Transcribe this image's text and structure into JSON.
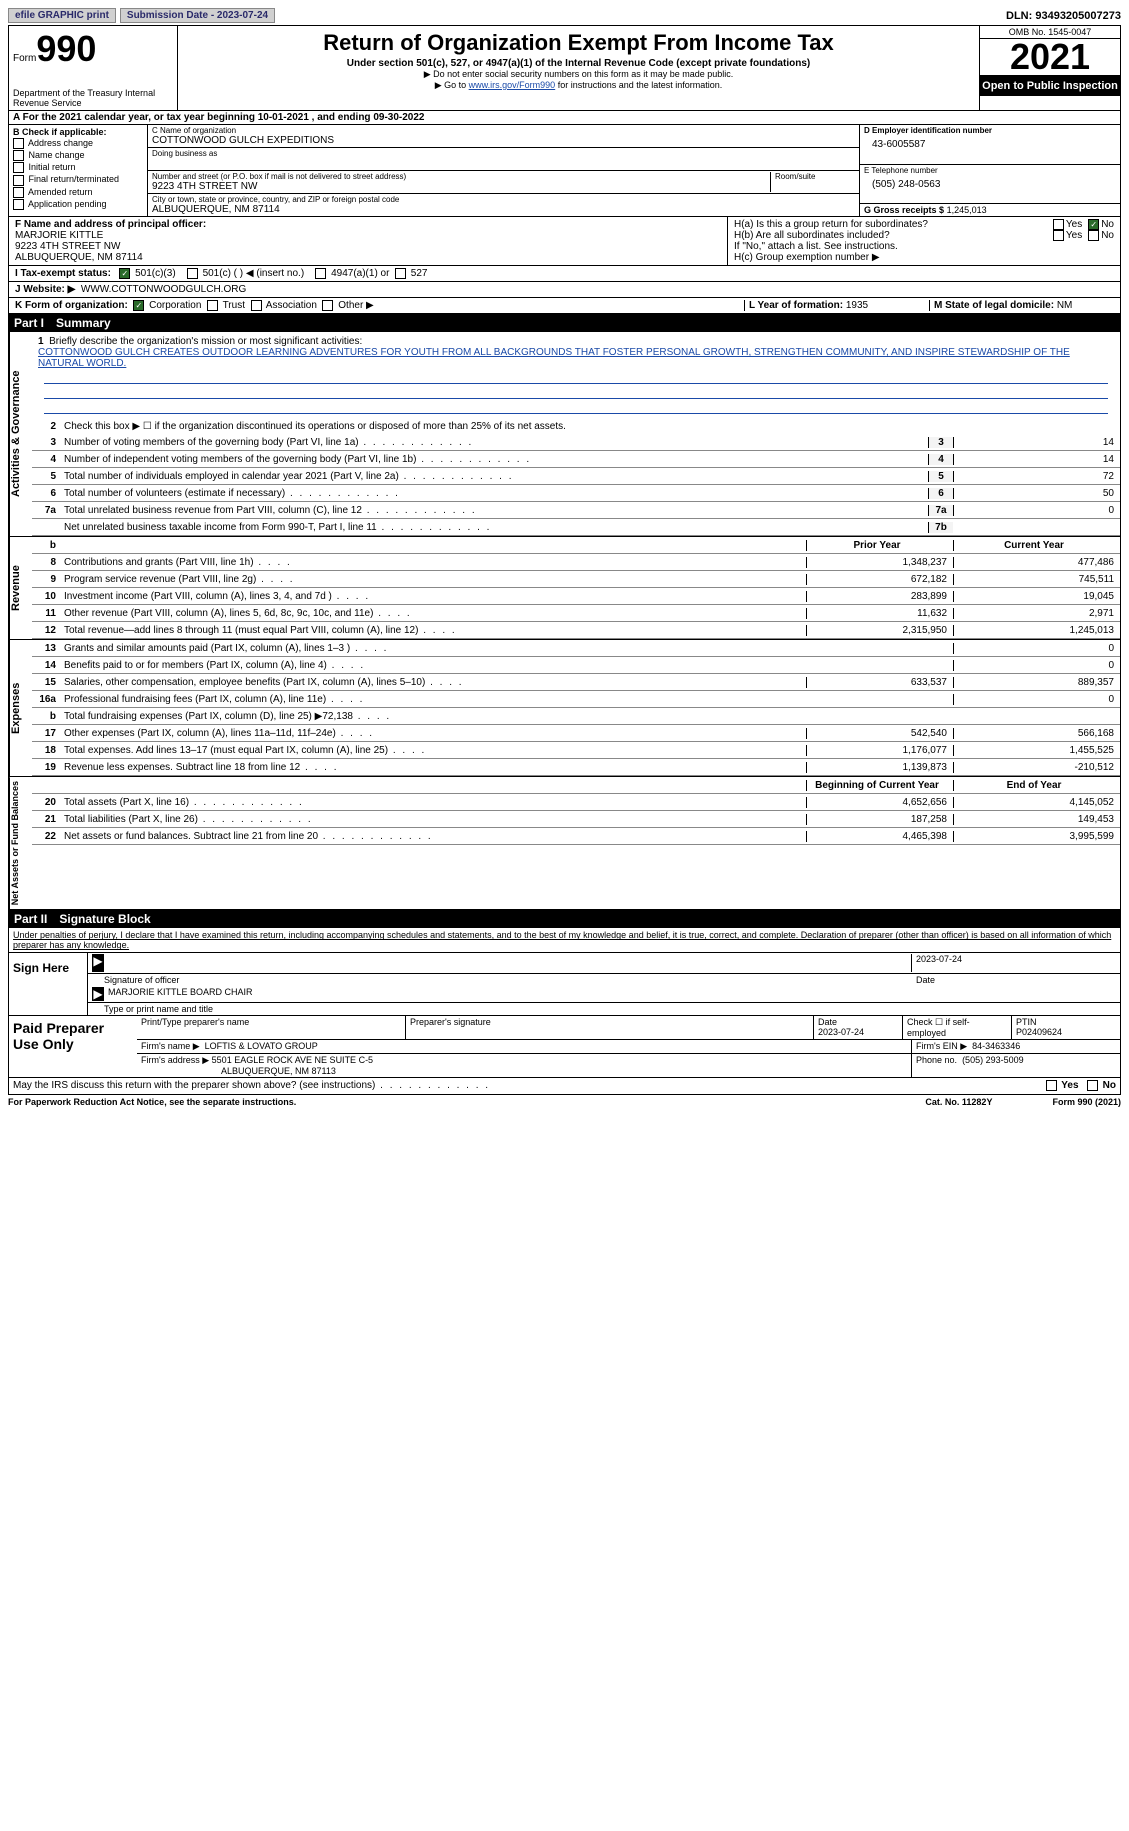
{
  "top": {
    "efile_btn": "efile GRAPHIC print",
    "submission_btn": "Submission Date - 2023-07-24",
    "dln": "DLN: 93493205007273"
  },
  "header": {
    "form_label": "Form",
    "form_num": "990",
    "dept": "Department of the Treasury Internal Revenue Service",
    "title": "Return of Organization Exempt From Income Tax",
    "sub1": "Under section 501(c), 527, or 4947(a)(1) of the Internal Revenue Code (except private foundations)",
    "sub2": "▶ Do not enter social security numbers on this form as it may be made public.",
    "sub3_pre": "▶ Go to ",
    "sub3_link": "www.irs.gov/Form990",
    "sub3_post": " for instructions and the latest information.",
    "omb": "OMB No. 1545-0047",
    "year": "2021",
    "open": "Open to Public Inspection"
  },
  "row_a": "A For the 2021 calendar year, or tax year beginning 10-01-2021    , and ending 09-30-2022",
  "section_b": {
    "b_label": "B Check if applicable:",
    "checks": [
      "Address change",
      "Name change",
      "Initial return",
      "Final return/terminated",
      "Amended return",
      "Application pending"
    ],
    "c_label": "C Name of organization",
    "c_name": "COTTONWOOD GULCH EXPEDITIONS",
    "dba_label": "Doing business as",
    "addr_label": "Number and street (or P.O. box if mail is not delivered to street address)",
    "room_label": "Room/suite",
    "addr": "9223 4TH STREET NW",
    "city_label": "City or town, state or province, country, and ZIP or foreign postal code",
    "city": "ALBUQUERQUE, NM  87114",
    "d_label": "D Employer identification number",
    "d_val": "43-6005587",
    "e_label": "E Telephone number",
    "e_val": "(505) 248-0563",
    "g_label": "G Gross receipts $",
    "g_val": "1,245,013"
  },
  "section_f": {
    "f_label": "F Name and address of principal officer:",
    "f_name": "MARJORIE KITTLE",
    "f_addr1": "9223 4TH STREET NW",
    "f_addr2": "ALBUQUERQUE, NM  87114",
    "ha": "H(a)  Is this a group return for subordinates?",
    "hb": "H(b)  Are all subordinates included?",
    "hb_note": "If \"No,\" attach a list. See instructions.",
    "hc": "H(c)  Group exemption number ▶",
    "yes": "Yes",
    "no": "No"
  },
  "row_i": {
    "label": "I   Tax-exempt status:",
    "opt1": "501(c)(3)",
    "opt2": "501(c) (  ) ◀ (insert no.)",
    "opt3": "4947(a)(1) or",
    "opt4": "527"
  },
  "row_j": {
    "label": "J   Website: ▶",
    "val": "WWW.COTTONWOODGULCH.ORG"
  },
  "row_k": {
    "label": "K Form of organization:",
    "opts": [
      "Corporation",
      "Trust",
      "Association",
      "Other ▶"
    ],
    "l_label": "L Year of formation:",
    "l_val": "1935",
    "m_label": "M State of legal domicile:",
    "m_val": "NM"
  },
  "part1": {
    "header_num": "Part I",
    "header_title": "Summary",
    "q1_label": "1",
    "q1": "Briefly describe the organization's mission or most significant activities:",
    "q1_text": "COTTONWOOD GULCH CREATES OUTDOOR LEARNING ADVENTURES FOR YOUTH FROM ALL BACKGROUNDS THAT FOSTER PERSONAL GROWTH, STRENGTHEN COMMUNITY, AND INSPIRE STEWARDSHIP OF THE NATURAL WORLD.",
    "q2": "Check this box ▶ ☐  if the organization discontinued its operations or disposed of more than 25% of its net assets.",
    "side1": "Activities & Governance",
    "side2": "Revenue",
    "side3": "Expenses",
    "side4": "Net Assets or Fund Balances",
    "rows_gov": [
      {
        "n": "3",
        "d": "Number of voting members of the governing body (Part VI, line 1a)",
        "b": "3",
        "v": "14"
      },
      {
        "n": "4",
        "d": "Number of independent voting members of the governing body (Part VI, line 1b)",
        "b": "4",
        "v": "14"
      },
      {
        "n": "5",
        "d": "Total number of individuals employed in calendar year 2021 (Part V, line 2a)",
        "b": "5",
        "v": "72"
      },
      {
        "n": "6",
        "d": "Total number of volunteers (estimate if necessary)",
        "b": "6",
        "v": "50"
      },
      {
        "n": "7a",
        "d": "Total unrelated business revenue from Part VIII, column (C), line 12",
        "b": "7a",
        "v": "0"
      },
      {
        "n": "",
        "d": "Net unrelated business taxable income from Form 990-T, Part I, line 11",
        "b": "7b",
        "v": ""
      }
    ],
    "col_prior": "Prior Year",
    "col_current": "Current Year",
    "rows_rev": [
      {
        "n": "8",
        "d": "Contributions and grants (Part VIII, line 1h)",
        "p": "1,348,237",
        "c": "477,486"
      },
      {
        "n": "9",
        "d": "Program service revenue (Part VIII, line 2g)",
        "p": "672,182",
        "c": "745,511"
      },
      {
        "n": "10",
        "d": "Investment income (Part VIII, column (A), lines 3, 4, and 7d )",
        "p": "283,899",
        "c": "19,045"
      },
      {
        "n": "11",
        "d": "Other revenue (Part VIII, column (A), lines 5, 6d, 8c, 9c, 10c, and 11e)",
        "p": "11,632",
        "c": "2,971"
      },
      {
        "n": "12",
        "d": "Total revenue—add lines 8 through 11 (must equal Part VIII, column (A), line 12)",
        "p": "2,315,950",
        "c": "1,245,013"
      }
    ],
    "rows_exp": [
      {
        "n": "13",
        "d": "Grants and similar amounts paid (Part IX, column (A), lines 1–3 )",
        "p": "",
        "c": "0"
      },
      {
        "n": "14",
        "d": "Benefits paid to or for members (Part IX, column (A), line 4)",
        "p": "",
        "c": "0"
      },
      {
        "n": "15",
        "d": "Salaries, other compensation, employee benefits (Part IX, column (A), lines 5–10)",
        "p": "633,537",
        "c": "889,357"
      },
      {
        "n": "16a",
        "d": "Professional fundraising fees (Part IX, column (A), line 11e)",
        "p": "",
        "c": "0"
      },
      {
        "n": "b",
        "d": "Total fundraising expenses (Part IX, column (D), line 25) ▶72,138",
        "p": "shade",
        "c": "shade"
      },
      {
        "n": "17",
        "d": "Other expenses (Part IX, column (A), lines 11a–11d, 11f–24e)",
        "p": "542,540",
        "c": "566,168"
      },
      {
        "n": "18",
        "d": "Total expenses. Add lines 13–17 (must equal Part IX, column (A), line 25)",
        "p": "1,176,077",
        "c": "1,455,525"
      },
      {
        "n": "19",
        "d": "Revenue less expenses. Subtract line 18 from line 12",
        "p": "1,139,873",
        "c": "-210,512"
      }
    ],
    "col_begin": "Beginning of Current Year",
    "col_end": "End of Year",
    "rows_net": [
      {
        "n": "20",
        "d": "Total assets (Part X, line 16)",
        "p": "4,652,656",
        "c": "4,145,052"
      },
      {
        "n": "21",
        "d": "Total liabilities (Part X, line 26)",
        "p": "187,258",
        "c": "149,453"
      },
      {
        "n": "22",
        "d": "Net assets or fund balances. Subtract line 21 from line 20",
        "p": "4,465,398",
        "c": "3,995,599"
      }
    ]
  },
  "part2": {
    "header_num": "Part II",
    "header_title": "Signature Block",
    "decl": "Under penalties of perjury, I declare that I have examined this return, including accompanying schedules and statements, and to the best of my knowledge and belief, it is true, correct, and complete. Declaration of preparer (other than officer) is based on all information of which preparer has any knowledge.",
    "sign_here": "Sign Here",
    "sig_officer": "Signature of officer",
    "sig_date": "2023-07-24",
    "date_label": "Date",
    "sig_name": "MARJORIE KITTLE  BOARD CHAIR",
    "sig_type": "Type or print name and title",
    "paid": "Paid Preparer Use Only",
    "p_name_label": "Print/Type preparer's name",
    "p_sig_label": "Preparer's signature",
    "p_date_label": "Date",
    "p_date": "2023-07-24",
    "p_check": "Check ☐ if self-employed",
    "p_ptin_label": "PTIN",
    "p_ptin": "P02409624",
    "firm_name_label": "Firm's name      ▶",
    "firm_name": "LOFTIS & LOVATO GROUP",
    "firm_ein_label": "Firm's EIN ▶",
    "firm_ein": "84-3463346",
    "firm_addr_label": "Firm's address ▶",
    "firm_addr1": "5501 EAGLE ROCK AVE NE SUITE C-5",
    "firm_addr2": "ALBUQUERQUE, NM  87113",
    "firm_phone_label": "Phone no.",
    "firm_phone": "(505) 293-5009",
    "discuss": "May the IRS discuss this return with the preparer shown above? (see instructions)"
  },
  "footer": {
    "left": "For Paperwork Reduction Act Notice, see the separate instructions.",
    "mid": "Cat. No. 11282Y",
    "right": "Form 990 (2021)"
  }
}
